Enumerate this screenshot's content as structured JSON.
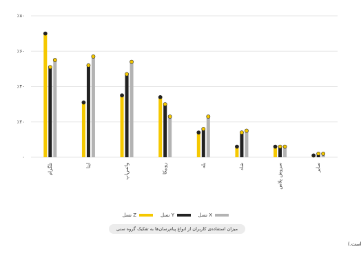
{
  "chart_data": {
    "type": "bar",
    "title": "میزان استفاده‌ی کاربران از انواع پیام‌رسان‌ها به تفکیک گروه سنی",
    "note": "در نظرسنجی از کاربران پرسیده شد: شما از چه پیام‌رسان‌هایی استفاده می‌کنید؟ (امکان انتخاب چند گزینه وجود داشته است.)",
    "categories": [
      "تلگرام",
      "ایتا",
      "واتس‌اپ",
      "روبیکا",
      "بله",
      "شاد",
      "سروش پلاس",
      "سایر"
    ],
    "series": [
      {
        "name": "نسل Z",
        "color": "#f5c800",
        "values": [
          70,
          31,
          35,
          34,
          14,
          6,
          6,
          1
        ]
      },
      {
        "name": "نسل Y",
        "color": "#222222",
        "values": [
          51,
          52,
          47,
          30,
          16,
          14,
          6,
          2
        ]
      },
      {
        "name": "نسل X",
        "color": "#b3b3b3",
        "values": [
          55,
          57,
          54,
          23,
          23,
          15,
          6,
          2
        ]
      }
    ],
    "ylim": [
      0,
      80
    ],
    "yticks": [
      {
        "value": 0,
        "label": "۰"
      },
      {
        "value": 20,
        "label": "٪۲۰"
      },
      {
        "value": 40,
        "label": "٪۴۰"
      },
      {
        "value": 60,
        "label": "٪۶۰"
      },
      {
        "value": 80,
        "label": "٪۸۰"
      }
    ],
    "grid": true
  }
}
